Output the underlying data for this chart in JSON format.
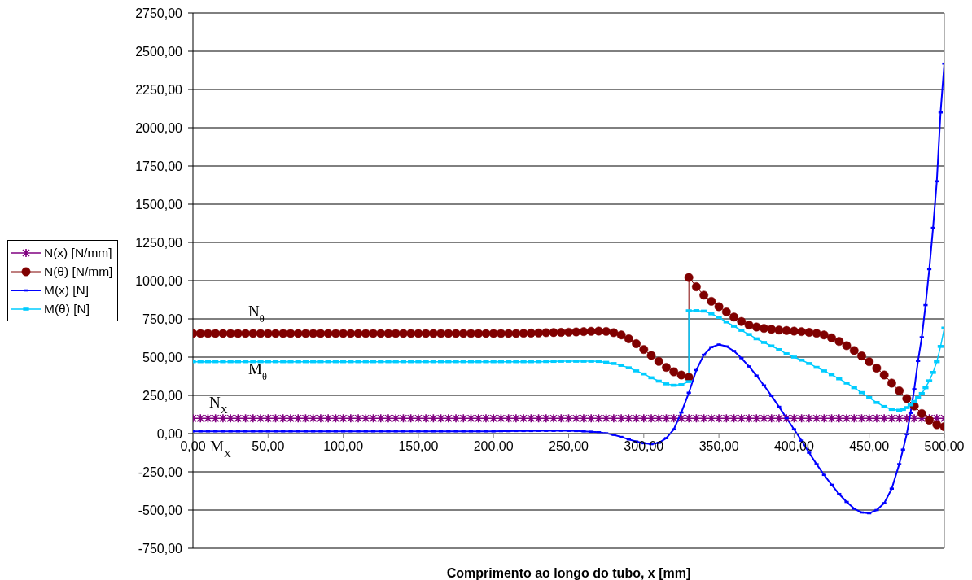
{
  "chart_data": {
    "type": "line",
    "xlabel": "Comprimento ao longo do tubo, x [mm]",
    "x": [
      0,
      5,
      10,
      15,
      20,
      25,
      30,
      35,
      40,
      45,
      50,
      55,
      60,
      65,
      70,
      75,
      80,
      85,
      90,
      95,
      100,
      105,
      110,
      115,
      120,
      125,
      130,
      135,
      140,
      145,
      150,
      155,
      160,
      165,
      170,
      175,
      180,
      185,
      190,
      195,
      200,
      205,
      210,
      215,
      220,
      225,
      230,
      235,
      240,
      245,
      250,
      255,
      260,
      265,
      270,
      275,
      280,
      285,
      290,
      295,
      300,
      305,
      310,
      315,
      320,
      325,
      330,
      335,
      340,
      345,
      350,
      355,
      360,
      365,
      370,
      375,
      380,
      385,
      390,
      395,
      400,
      405,
      410,
      415,
      420,
      425,
      430,
      435,
      440,
      445,
      450,
      455,
      460,
      465,
      470,
      475,
      480,
      485,
      490,
      495,
      500
    ],
    "xlim": [
      0,
      500
    ],
    "xticks": [
      {
        "value": 0,
        "label": "0,00"
      },
      {
        "value": 50,
        "label": "50,00"
      },
      {
        "value": 100,
        "label": "100,00"
      },
      {
        "value": 150,
        "label": "150,00"
      },
      {
        "value": 200,
        "label": "200,00"
      },
      {
        "value": 250,
        "label": "250,00"
      },
      {
        "value": 300,
        "label": "300,00"
      },
      {
        "value": 350,
        "label": "350,00"
      },
      {
        "value": 400,
        "label": "400,00"
      },
      {
        "value": 450,
        "label": "450,00"
      },
      {
        "value": 500,
        "label": "500,00"
      }
    ],
    "ylim": [
      -750,
      2750
    ],
    "yticks": [
      {
        "value": -750,
        "label": "-750,00"
      },
      {
        "value": -500,
        "label": "-500,00"
      },
      {
        "value": -250,
        "label": "-250,00"
      },
      {
        "value": 0,
        "label": "0,00"
      },
      {
        "value": 250,
        "label": "250,00"
      },
      {
        "value": 500,
        "label": "500,00"
      },
      {
        "value": 750,
        "label": "750,00"
      },
      {
        "value": 1000,
        "label": "1000,00"
      },
      {
        "value": 1250,
        "label": "1250,00"
      },
      {
        "value": 1500,
        "label": "1500,00"
      },
      {
        "value": 1750,
        "label": "1750,00"
      },
      {
        "value": 2000,
        "label": "2000,00"
      },
      {
        "value": 2250,
        "label": "2250,00"
      },
      {
        "value": 2500,
        "label": "2500,00"
      },
      {
        "value": 2750,
        "label": "2750,00"
      }
    ],
    "grid": "y",
    "legend": "left",
    "series": [
      {
        "name": "N(x) [N/mm]",
        "color": "#800080",
        "marker": "cross",
        "values": [
          100,
          100,
          100,
          100,
          100,
          100,
          100,
          100,
          100,
          100,
          100,
          100,
          100,
          100,
          100,
          100,
          100,
          100,
          100,
          100,
          100,
          100,
          100,
          100,
          100,
          100,
          100,
          100,
          100,
          100,
          100,
          100,
          100,
          100,
          100,
          100,
          100,
          100,
          100,
          100,
          100,
          100,
          100,
          100,
          100,
          100,
          100,
          100,
          100,
          100,
          100,
          100,
          100,
          100,
          100,
          100,
          100,
          100,
          100,
          100,
          100,
          100,
          100,
          100,
          100,
          100,
          100,
          100,
          100,
          100,
          100,
          100,
          100,
          100,
          100,
          100,
          100,
          100,
          100,
          100,
          100,
          100,
          100,
          100,
          100,
          100,
          100,
          100,
          100,
          100,
          100,
          100,
          100,
          100,
          100,
          100,
          100,
          100,
          100,
          100,
          100
        ]
      },
      {
        "name": "N(θ) [N/mm]",
        "color": "#800000",
        "marker": "circle",
        "x": [
          0,
          5,
          10,
          15,
          20,
          25,
          30,
          35,
          40,
          45,
          50,
          55,
          60,
          65,
          70,
          75,
          80,
          85,
          90,
          95,
          100,
          105,
          110,
          115,
          120,
          125,
          130,
          135,
          140,
          145,
          150,
          155,
          160,
          165,
          170,
          175,
          180,
          185,
          190,
          195,
          200,
          205,
          210,
          215,
          220,
          225,
          230,
          235,
          240,
          245,
          250,
          255,
          260,
          265,
          270,
          275,
          280,
          285,
          290,
          295,
          300,
          305,
          310,
          315,
          320,
          325,
          330,
          330,
          335,
          340,
          345,
          350,
          355,
          360,
          365,
          370,
          375,
          380,
          385,
          390,
          395,
          400,
          405,
          410,
          415,
          420,
          425,
          430,
          435,
          440,
          445,
          450,
          455,
          460,
          465,
          470,
          475,
          480,
          485,
          490,
          495,
          500
        ],
        "values": [
          655,
          655,
          655,
          655,
          655,
          655,
          655,
          655,
          655,
          655,
          655,
          655,
          655,
          655,
          655,
          655,
          655,
          655,
          655,
          655,
          655,
          655,
          655,
          655,
          655,
          655,
          655,
          655,
          655,
          655,
          655,
          655,
          655,
          655,
          655,
          655,
          655,
          655,
          655,
          655,
          655,
          655,
          655,
          655,
          656,
          657,
          658,
          660,
          661,
          662,
          663,
          665,
          667,
          669,
          670,
          668,
          660,
          645,
          620,
          588,
          550,
          511,
          472,
          433,
          404,
          383,
          369,
          1021,
          960,
          905,
          865,
          830,
          796,
          762,
          733,
          710,
          697,
          688,
          682,
          677,
          674,
          670,
          667,
          662,
          656,
          645,
          626,
          603,
          575,
          543,
          508,
          470,
          428,
          383,
          330,
          280,
          229,
          180,
          131,
          88,
          58,
          45
        ]
      },
      {
        "name": "M(x) [N]",
        "color": "#0000ff",
        "marker": "square",
        "x": [
          0,
          5,
          10,
          15,
          20,
          25,
          30,
          35,
          40,
          45,
          50,
          55,
          60,
          65,
          70,
          75,
          80,
          85,
          90,
          95,
          100,
          105,
          110,
          115,
          120,
          125,
          130,
          135,
          140,
          145,
          150,
          155,
          160,
          165,
          170,
          175,
          180,
          185,
          190,
          195,
          200,
          205,
          210,
          215,
          220,
          225,
          230,
          235,
          240,
          245,
          250,
          255,
          260,
          265,
          270,
          275,
          280,
          285,
          290,
          295,
          300,
          305,
          310,
          315,
          320,
          325,
          330,
          335,
          340,
          345,
          350,
          355,
          360,
          365,
          370,
          375,
          380,
          385,
          390,
          395,
          400,
          405,
          410,
          415,
          420,
          425,
          430,
          435,
          440,
          445,
          450,
          455,
          460,
          465,
          470,
          472.5,
          475,
          477.5,
          480,
          482.5,
          485,
          487.5,
          490,
          492.5,
          495,
          497.5,
          500
        ],
        "values": [
          15,
          15,
          15,
          15,
          15,
          15,
          15,
          15,
          15,
          15,
          15,
          15,
          15,
          15,
          15,
          15,
          15,
          15,
          15,
          15,
          15,
          15,
          15,
          15,
          15,
          15,
          15,
          15,
          15,
          15,
          15,
          15,
          15,
          15,
          15,
          15,
          15,
          15,
          15,
          15,
          15,
          16,
          16,
          17,
          17,
          17,
          18,
          18,
          18,
          19,
          18,
          17,
          15,
          12,
          9,
          2,
          -8,
          -22,
          -38,
          -52,
          -63,
          -69,
          -60,
          -30,
          28,
          138,
          267,
          415,
          515,
          565,
          582,
          570,
          540,
          493,
          439,
          379,
          315,
          247,
          175,
          101,
          28,
          -46,
          -125,
          -200,
          -270,
          -335,
          -395,
          -447,
          -491,
          -516,
          -521,
          -500,
          -455,
          -360,
          -200,
          -105,
          -3,
          135,
          290,
          475,
          630,
          840,
          1075,
          1345,
          1650,
          2100,
          2419
        ]
      },
      {
        "name": "M(θ) [N]",
        "color": "#00ccff",
        "marker": "square",
        "x": [
          0,
          5,
          10,
          15,
          20,
          25,
          30,
          35,
          40,
          45,
          50,
          55,
          60,
          65,
          70,
          75,
          80,
          85,
          90,
          95,
          100,
          105,
          110,
          115,
          120,
          125,
          130,
          135,
          140,
          145,
          150,
          155,
          160,
          165,
          170,
          175,
          180,
          185,
          190,
          195,
          200,
          205,
          210,
          215,
          220,
          225,
          230,
          235,
          240,
          245,
          250,
          255,
          260,
          265,
          270,
          275,
          280,
          285,
          290,
          295,
          300,
          305,
          310,
          315,
          320,
          325,
          330,
          330,
          335,
          340,
          345,
          350,
          355,
          360,
          365,
          370,
          375,
          380,
          385,
          390,
          395,
          400,
          405,
          410,
          415,
          420,
          425,
          430,
          435,
          440,
          445,
          450,
          455,
          460,
          465,
          470,
          472.5,
          475,
          477.5,
          480,
          482.5,
          485,
          487.5,
          490,
          492.5,
          495,
          497.5,
          500
        ],
        "values": [
          470,
          470,
          470,
          470,
          470,
          470,
          470,
          470,
          470,
          470,
          470,
          470,
          470,
          470,
          470,
          470,
          470,
          470,
          470,
          470,
          470,
          470,
          470,
          470,
          470,
          470,
          470,
          470,
          470,
          470,
          470,
          470,
          470,
          470,
          470,
          470,
          470,
          470,
          470,
          470,
          470,
          470,
          470,
          470,
          470,
          470,
          470,
          471,
          472,
          473,
          473,
          473,
          473,
          473,
          472,
          466,
          458,
          446,
          430,
          410,
          390,
          365,
          343,
          325,
          316,
          320,
          340,
          803,
          804,
          801,
          783,
          760,
          730,
          702,
          675,
          648,
          620,
          596,
          573,
          549,
          522,
          500,
          480,
          458,
          433,
          410,
          385,
          358,
          330,
          300,
          268,
          235,
          203,
          177,
          158,
          153,
          158,
          170,
          188,
          210,
          235,
          262,
          300,
          345,
          400,
          470,
          570,
          690
        ]
      }
    ],
    "annotations": [
      "N$_{θ}$",
      "M$_{θ}$",
      "N$_{X}$",
      "M$_{X}$"
    ]
  }
}
